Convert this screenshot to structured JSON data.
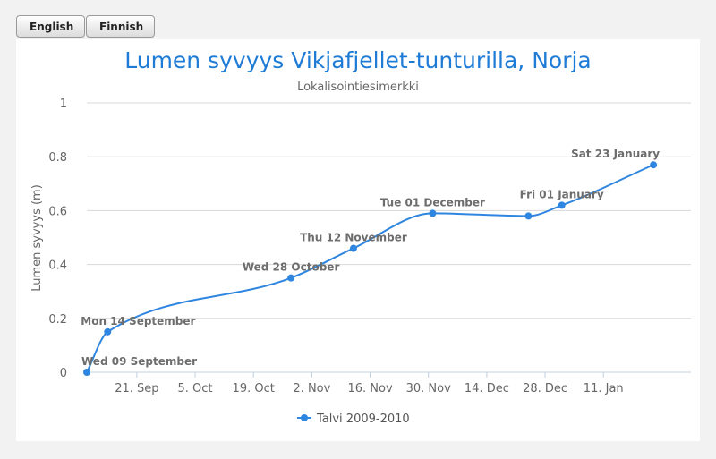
{
  "buttons": {
    "english": "English",
    "finnish": "Finnish"
  },
  "chart_data": {
    "type": "line",
    "title": "Lumen syvyys Vikjafjellet-tunturilla, Norja",
    "subtitle": "Lokalisointiesimerkki",
    "ylabel": "Lumen syvyys (m)",
    "ylim": [
      0,
      1
    ],
    "yticks": [
      "0",
      "0.2",
      "0.4",
      "0.6",
      "0.8",
      "1"
    ],
    "xlim": [
      "2009-09-09",
      "2010-02-01"
    ],
    "xticks": [
      {
        "date": "2009-09-21",
        "label": "21. Sep"
      },
      {
        "date": "2009-10-05",
        "label": "5. Oct"
      },
      {
        "date": "2009-10-19",
        "label": "19. Oct"
      },
      {
        "date": "2009-11-02",
        "label": "2. Nov"
      },
      {
        "date": "2009-11-16",
        "label": "16. Nov"
      },
      {
        "date": "2009-11-30",
        "label": "30. Nov"
      },
      {
        "date": "2009-12-14",
        "label": "14. Dec"
      },
      {
        "date": "2009-12-28",
        "label": "28. Dec"
      },
      {
        "date": "2010-01-11",
        "label": "11. Jan"
      }
    ],
    "grid": true,
    "legend_position": "bottom-center",
    "series": [
      {
        "name": "Talvi 2009-2010",
        "color": "#2f86e0",
        "points": [
          {
            "x": "2009-09-09",
            "y": 0,
            "label": "Wed 09 September"
          },
          {
            "x": "2009-09-14",
            "y": 0.15,
            "label": "Mon 14 September"
          },
          {
            "x": "2009-10-28",
            "y": 0.35,
            "label": "Wed 28 October"
          },
          {
            "x": "2009-11-12",
            "y": 0.46,
            "label": "Thu 12 November"
          },
          {
            "x": "2009-12-01",
            "y": 0.59,
            "label": "Tue 01 December"
          },
          {
            "x": "2009-12-24",
            "y": 0.58,
            "label": ""
          },
          {
            "x": "2010-01-01",
            "y": 0.62,
            "label": "Fri 01 January"
          },
          {
            "x": "2010-01-23",
            "y": 0.77,
            "label": "Sat 23 January"
          }
        ]
      }
    ]
  }
}
